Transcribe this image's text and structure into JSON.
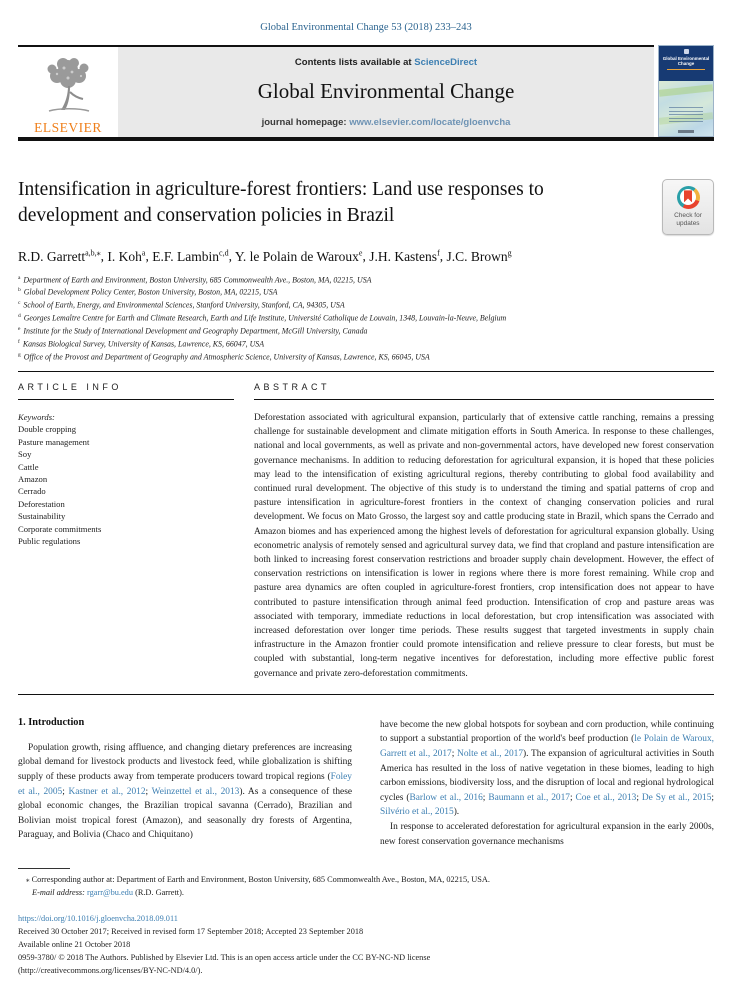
{
  "page": {
    "citation": "Global Environmental Change 53 (2018) 233–243"
  },
  "banner": {
    "contents_prefix": "Contents lists available at ",
    "contents_link": "ScienceDirect",
    "journal_title": "Global Environmental Change",
    "homepage_prefix": "journal homepage: ",
    "homepage_url": "www.elsevier.com/locate/gloenvcha",
    "elsevier_wordmark": "ELSEVIER"
  },
  "cover": {
    "title": "Global Environmental Change"
  },
  "badge": {
    "line1": "Check for",
    "line2": "updates"
  },
  "article": {
    "title": "Intensification in agriculture-forest frontiers: Land use responses to development and conservation policies in Brazil",
    "authors": [
      {
        "name": "R.D. Garrett",
        "sup": "a,b,⁎"
      },
      {
        "name": "I. Koh",
        "sup": "a"
      },
      {
        "name": "E.F. Lambin",
        "sup": "c,d"
      },
      {
        "name": "Y. le Polain de Waroux",
        "sup": "e"
      },
      {
        "name": "J.H. Kastens",
        "sup": "f"
      },
      {
        "name": "J.C. Brown",
        "sup": "g"
      }
    ],
    "affiliations": [
      {
        "sup": "a",
        "text": "Department of Earth and Environment, Boston University, 685 Commonwealth Ave., Boston, MA, 02215, USA"
      },
      {
        "sup": "b",
        "text": "Global Development Policy Center, Boston University, Boston, MA, 02215, USA"
      },
      {
        "sup": "c",
        "text": "School of Earth, Energy, and Environmental Sciences, Stanford University, Stanford, CA, 94305, USA"
      },
      {
        "sup": "d",
        "text": "Georges Lemaître Centre for Earth and Climate Research, Earth and Life Institute, Université Catholique de Louvain, 1348, Louvain-la-Neuve, Belgium"
      },
      {
        "sup": "e",
        "text": "Institute for the Study of International Development and Geography Department, McGill University, Canada"
      },
      {
        "sup": "f",
        "text": "Kansas Biological Survey, University of Kansas, Lawrence, KS, 66047, USA"
      },
      {
        "sup": "g",
        "text": "Office of the Provost and Department of Geography and Atmospheric Science, University of Kansas, Lawrence, KS, 66045, USA"
      }
    ]
  },
  "article_info": {
    "heading": "ARTICLE INFO",
    "keywords_label": "Keywords:",
    "keywords": [
      "Double cropping",
      "Pasture management",
      "Soy",
      "Cattle",
      "Amazon",
      "Cerrado",
      "Deforestation",
      "Sustainability",
      "Corporate commitments",
      "Public regulations"
    ]
  },
  "abstract": {
    "heading": "ABSTRACT",
    "text": "Deforestation associated with agricultural expansion, particularly that of extensive cattle ranching, remains a pressing challenge for sustainable development and climate mitigation efforts in South America. In response to these challenges, national and local governments, as well as private and non-governmental actors, have developed new forest conservation governance mechanisms. In addition to reducing deforestation for agricultural expansion, it is hoped that these policies may lead to the intensification of existing agricultural regions, thereby contributing to global food availability and continued rural development. The objective of this study is to understand the timing and spatial patterns of crop and pasture intensification in agriculture-forest frontiers in the context of changing conservation policies and rural development. We focus on Mato Grosso, the largest soy and cattle producing state in Brazil, which spans the Cerrado and Amazon biomes and has experienced among the highest levels of deforestation for agricultural expansion globally. Using econometric analysis of remotely sensed and agricultural survey data, we find that cropland and pasture intensification are both linked to increasing forest conservation restrictions and broader supply chain development. However, the effect of conservation restrictions on intensification is lower in regions where there is more forest remaining. While crop and pasture area dynamics are often coupled in agriculture-forest frontiers, crop intensification does not appear to have contributed to pasture intensification through animal feed production. Intensification of crop and pasture areas was associated with temporary, immediate reductions in local deforestation, but crop intensification was associated with increased deforestation over longer time periods. These results suggest that targeted investments in supply chain infrastructure in the Amazon frontier could promote intensification and relieve pressure to clear forests, but must be coupled with substantial, long-term negative incentives for deforestation, including more effective public forest governance and private zero-deforestation commitments."
  },
  "introduction": {
    "heading": "1. Introduction",
    "col1": [
      {
        "indent": true,
        "rich": "Population growth, rising affluence, and changing dietary preferences are increasing global demand for livestock products and livestock feed, while globalization is shifting supply of these products away from temperate producers toward tropical regions ([[Foley et al., 2005]]; [[Kastner et al., 2012]]; [[Weinzettel et al., 2013]]). As a consequence of these global economic changes, the Brazilian tropical savanna (Cerrado), Brazilian and Bolivian moist tropical forest (Amazon), and seasonally dry forests of Argentina, Paraguay, and Bolivia (Chaco and Chiquitano)"
      }
    ],
    "col2": [
      {
        "indent": false,
        "rich": "have become the new global hotspots for soybean and corn production, while continuing to support a substantial proportion of the world's beef production ([[le Polain de Waroux, Garrett et al., 2017]]; [[Nolte et al., 2017]]). The expansion of agricultural activities in South America has resulted in the loss of native vegetation in these biomes, leading to high carbon emissions, biodiversity loss, and the disruption of local and regional hydrological cycles ([[Barlow et al., 2016]]; [[Baumann et al., 2017]]; [[Coe et al., 2013]]; [[De Sy et al., 2015]]; [[Silvério et al., 2015]])."
      },
      {
        "indent": true,
        "rich": "In response to accelerated deforestation for agricultural expansion in the early 2000s, new forest conservation governance mechanisms"
      }
    ]
  },
  "footnote": {
    "marker": "⁎",
    "corresponding": "Corresponding author at: Department of Earth and Environment, Boston University, 685 Commonwealth Ave., Boston, MA, 02215, USA.",
    "email_label": "E-mail address:",
    "email": "rgarr@bu.edu",
    "email_suffix": "(R.D. Garrett)."
  },
  "footer": {
    "doi": "https://doi.org/10.1016/j.gloenvcha.2018.09.011",
    "received": "Received 30 October 2017; Received in revised form 17 September 2018; Accepted 23 September 2018",
    "available": "Available online 21 October 2018",
    "copyright1": "0959-3780/ © 2018 The Authors. Published by Elsevier Ltd. This is an open access article under the CC BY-NC-ND license",
    "copyright2": "(http://creativecommons.org/licenses/BY-NC-ND/4.0/)."
  },
  "icons": {
    "elsevier_logo": "elsevier-tree-icon",
    "badge_icon": "check-updates-ribbon-icon"
  },
  "colors": {
    "link_blue": "#3d7fb2",
    "elsevier_orange": "#ef7f1a",
    "banner_gray": "#e9e9e9",
    "cover_navy": "#173a73",
    "rule_black": "#111111",
    "citation_blue": "#2d6590"
  }
}
